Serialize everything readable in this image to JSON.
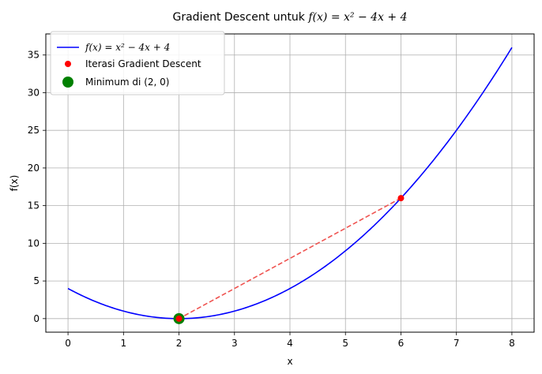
{
  "chart_data": {
    "type": "line",
    "title_prefix": "Gradient Descent untuk ",
    "title_math": "f(x) = x² − 4x + 4",
    "xlabel": "x",
    "ylabel": "f(x)",
    "xlim": [
      -0.4,
      8.4
    ],
    "ylim": [
      -1.8,
      37.8
    ],
    "xticks": [
      0,
      1,
      2,
      3,
      4,
      5,
      6,
      7,
      8
    ],
    "yticks": [
      0,
      5,
      10,
      15,
      20,
      25,
      30,
      35
    ],
    "grid": true,
    "legend_position": "top-left",
    "function": {
      "name": "f(x) = x² − 4x + 4",
      "coefficients": [
        1,
        -4,
        4
      ],
      "x_range": [
        0,
        8
      ],
      "color": "#0000ff"
    },
    "iterations": {
      "name": "Iterasi Gradient Descent",
      "x": [
        6,
        2
      ],
      "y": [
        16,
        0
      ],
      "color": "#ff0000",
      "path_color": "#ef5350"
    },
    "minimum": {
      "name": "Minimum di (2, 0)",
      "x": 2,
      "y": 0,
      "color": "#008000"
    }
  }
}
